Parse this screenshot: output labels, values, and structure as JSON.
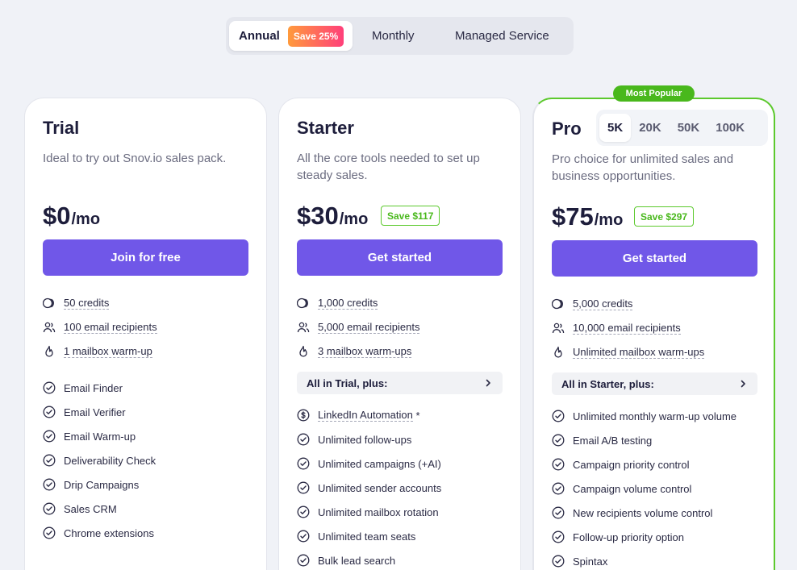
{
  "billing": {
    "annual": "Annual",
    "save_badge": "Save 25%",
    "monthly": "Monthly",
    "managed": "Managed Service"
  },
  "plans": {
    "trial": {
      "title": "Trial",
      "description": "Ideal to try out Snov.io sales pack.",
      "price": "$0",
      "per": "/mo",
      "cta": "Join for free",
      "limits": [
        "50 credits",
        "100 email recipients",
        "1 mailbox warm-up"
      ],
      "features": [
        "Email Finder",
        "Email Verifier",
        "Email Warm-up",
        "Deliverability Check",
        "Drip Campaigns",
        "Sales CRM",
        "Chrome extensions"
      ]
    },
    "starter": {
      "title": "Starter",
      "description": "All the core tools needed to set up steady sales.",
      "price": "$30",
      "per": "/mo",
      "saving": "Save $117",
      "cta": "Get started",
      "limits": [
        "1,000 credits",
        "5,000 email recipients",
        "3 mailbox warm-ups"
      ],
      "plus": "All in Trial, plus:",
      "linkedin": "LinkedIn Automation",
      "linkedin_mark": "*",
      "features": [
        "Unlimited follow-ups",
        "Unlimited campaigns (+AI)",
        "Unlimited sender accounts",
        "Unlimited mailbox rotation",
        "Unlimited team seats",
        "Bulk lead search"
      ]
    },
    "pro": {
      "title": "Pro",
      "badge": "Most Popular",
      "tiers": [
        "5K",
        "20K",
        "50K",
        "100K"
      ],
      "description": "Pro choice for unlimited sales and business opportunities.",
      "price": "$75",
      "per": "/mo",
      "saving": "Save $297",
      "cta": "Get started",
      "limits": [
        "5,000 credits",
        "10,000 email recipients",
        "Unlimited mailbox warm-ups"
      ],
      "plus": "All in Starter, plus:",
      "features": [
        "Unlimited monthly warm-up volume",
        "Email A/B testing",
        "Campaign priority control",
        "Campaign volume control",
        "New recipients volume control",
        "Follow-up priority option",
        "Spintax"
      ]
    }
  },
  "colors": {
    "accent": "#7057e8",
    "green": "#49b81c",
    "badge_gradient": "#ff3f7a"
  }
}
